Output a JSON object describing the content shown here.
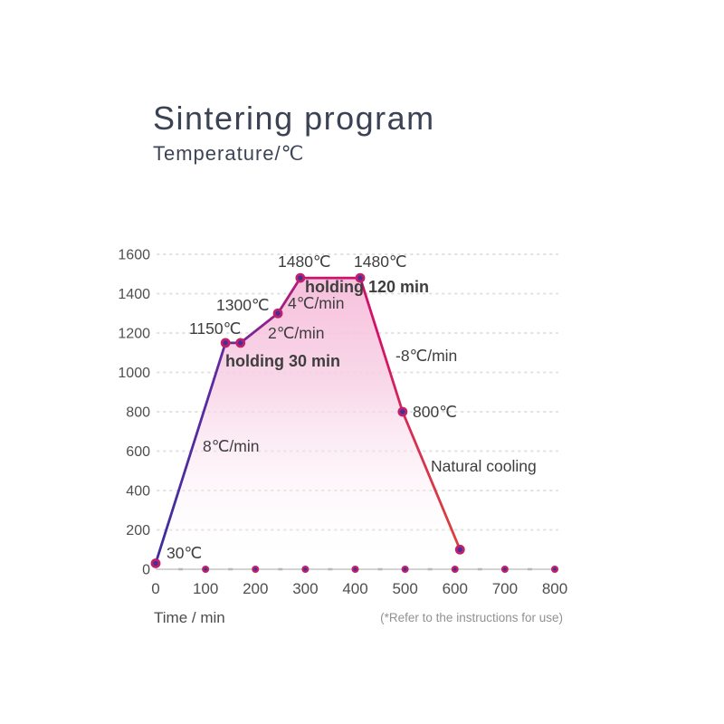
{
  "header": {
    "title": "Sintering program",
    "subtitle": "Temperature/℃"
  },
  "chart_data": {
    "type": "line",
    "title": "Sintering program",
    "xlabel": "Time / min",
    "ylabel": "Temperature/℃",
    "xlim": [
      0,
      800
    ],
    "ylim": [
      0,
      1600
    ],
    "grid": "dotted-horizontal",
    "x_ticks": [
      0,
      100,
      200,
      300,
      400,
      500,
      600,
      700,
      800
    ],
    "y_ticks": [
      0,
      200,
      400,
      600,
      800,
      1000,
      1200,
      1400,
      1600
    ],
    "points": [
      [
        0,
        30
      ],
      [
        140,
        1150
      ],
      [
        170,
        1150
      ],
      [
        245,
        1300
      ],
      [
        290,
        1480
      ],
      [
        410,
        1480
      ],
      [
        495,
        800
      ],
      [
        610,
        100
      ]
    ],
    "annotations": [
      {
        "text": "30℃",
        "x": 184,
        "y": 617,
        "bold": false
      },
      {
        "text": "8℃/min",
        "x": 224,
        "y": 499,
        "bold": false
      },
      {
        "text": "1150℃",
        "x": 209,
        "y": 369,
        "bold": false
      },
      {
        "text": "holding 30 min",
        "x": 249,
        "y": 405,
        "bold": true
      },
      {
        "text": "1300℃",
        "x": 239,
        "y": 343,
        "bold": false
      },
      {
        "text": "2℃/min",
        "x": 296,
        "y": 374,
        "bold": false
      },
      {
        "text": "4℃/min",
        "x": 318,
        "y": 341,
        "bold": false
      },
      {
        "text": "1480℃",
        "x": 307,
        "y": 295,
        "bold": false
      },
      {
        "text": "1480℃",
        "x": 391,
        "y": 295,
        "bold": false
      },
      {
        "text": "holding 120 min",
        "x": 337,
        "y": 323,
        "bold": true
      },
      {
        "text": "-8℃/min",
        "x": 437,
        "y": 399,
        "bold": false
      },
      {
        "text": "800℃",
        "x": 456,
        "y": 461,
        "bold": false
      },
      {
        "text": "Natural cooling",
        "x": 476,
        "y": 521,
        "bold": false
      }
    ],
    "footnote": "(*Refer to the instructions for use)",
    "colors": {
      "line_gradient": [
        "#3e2d9c",
        "#5e2aa0",
        "#8d2390",
        "#c31570",
        "#d01168",
        "#d62e53",
        "#da4337"
      ],
      "fill_top": "#f6b6d7",
      "fill_mid": "#f7cfe4",
      "dot_outer": "#c22069",
      "dot_inner": "#45309b",
      "grid": "#e1e1e1",
      "axis": "#d4d4d4",
      "minor_tick": "#b8b8b8",
      "tick_text": "#4f4f4f",
      "annotation_text": "#3e3e3e"
    }
  }
}
